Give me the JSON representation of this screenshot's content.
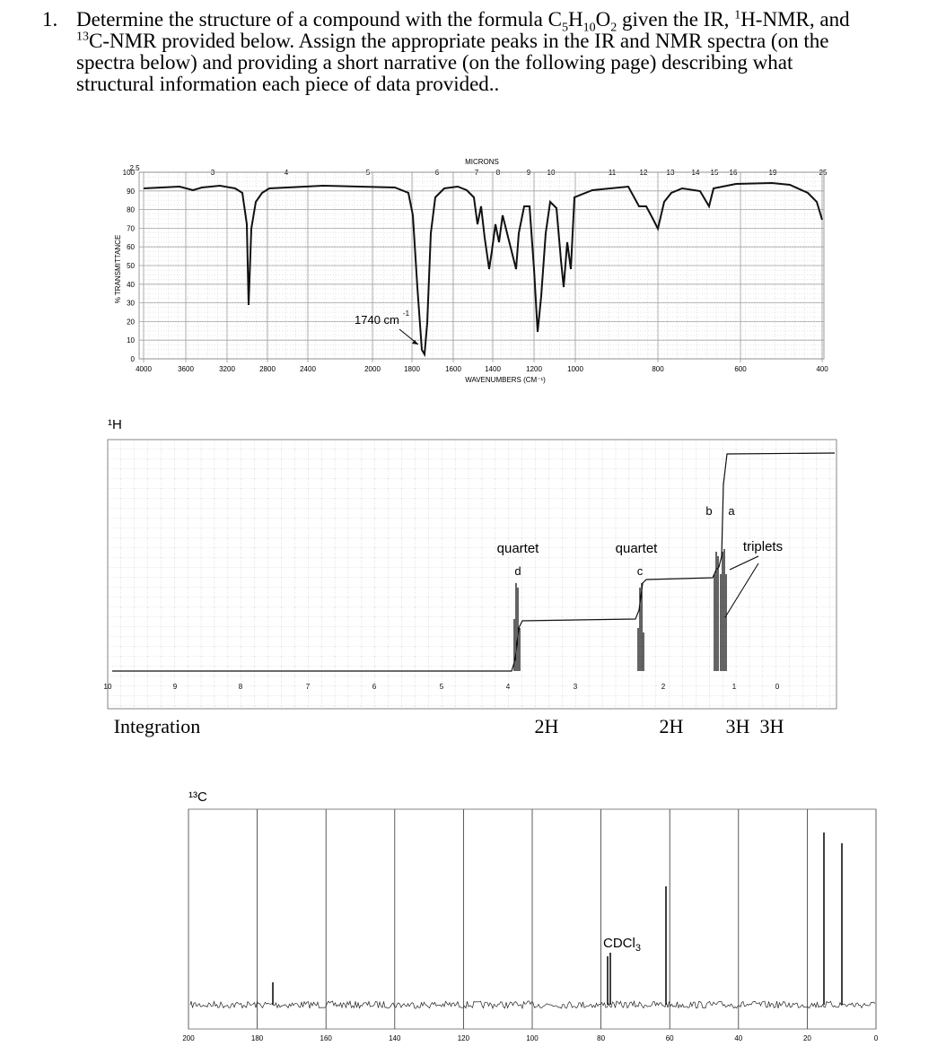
{
  "question": {
    "number": "1.",
    "lines": [
      [
        "Determine the structure of a compound with the formula C",
        "5",
        "H",
        "10",
        "O",
        "2",
        " given the IR, ",
        "1",
        "H-NMR, and"
      ],
      [
        "13",
        "C-NMR provided below.  Assign the appropriate peaks in the IR and NMR spectra (on the"
      ],
      "spectra below) and providing a short narrative (on the following page) describing what",
      "structural information each piece of data provided.."
    ]
  },
  "ir": {
    "title": "MICRONS",
    "micron_ticks": [
      2.5,
      3,
      4,
      5,
      6,
      7,
      8,
      9,
      10,
      11,
      12,
      13,
      14,
      15,
      16,
      19,
      25
    ],
    "y_label": "% TRANSMITTANCE",
    "y_ticks": [
      100,
      90,
      80,
      70,
      60,
      50,
      40,
      30,
      20,
      10,
      0
    ],
    "x_ticks": [
      4000,
      3600,
      3200,
      2800,
      2400,
      2000,
      1800,
      1600,
      1400,
      1200,
      1000,
      800,
      600,
      400
    ],
    "x_label": "WAVENUMBERS (CM⁻¹)",
    "annotation": {
      "text": "1740 cm",
      "sup": "-1"
    }
  },
  "h_nmr": {
    "label": "¹H",
    "x_ticks": [
      10,
      9,
      8,
      7,
      6,
      5,
      4,
      3,
      2,
      1,
      0
    ],
    "peak_labels": [
      {
        "multiplicity": "quartet",
        "letter": "d"
      },
      {
        "multiplicity": "quartet",
        "letter": "c"
      }
    ],
    "letters": [
      "b",
      "a"
    ],
    "triplets": "triplets",
    "integration": {
      "label": "Integration",
      "values": [
        "2H",
        "2H",
        "3H",
        "3H"
      ]
    }
  },
  "c_nmr": {
    "label": "¹³C",
    "x_ticks": [
      200,
      180,
      160,
      140,
      120,
      100,
      80,
      60,
      40,
      20,
      0
    ],
    "xlim": [
      200,
      0
    ],
    "solvent": [
      "CDCl",
      "3"
    ]
  }
}
